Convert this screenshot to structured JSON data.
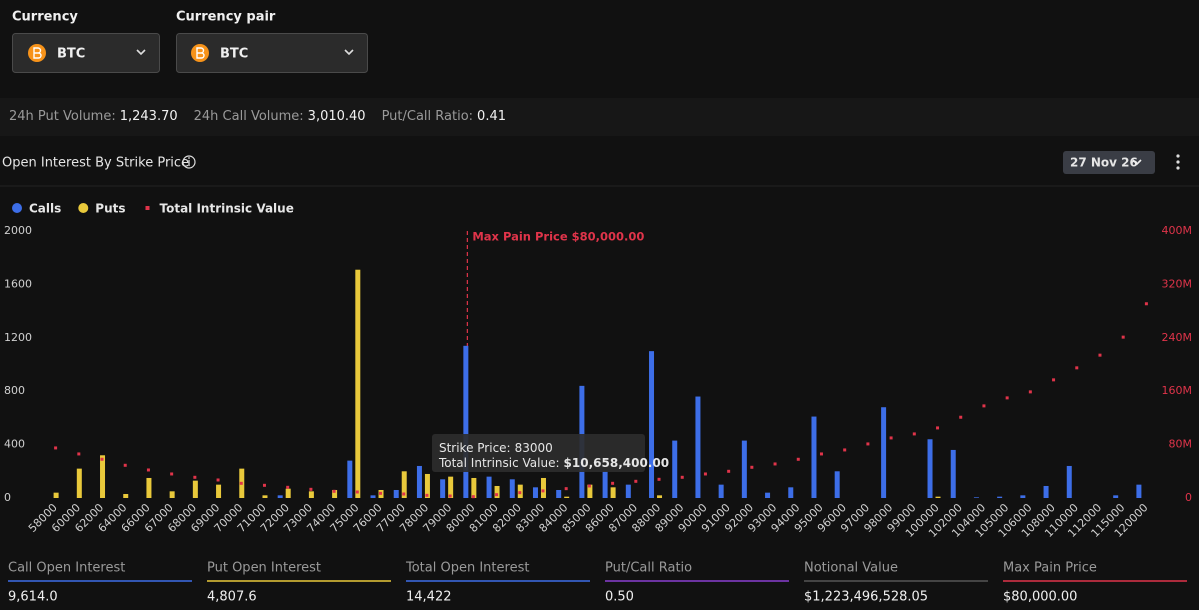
{
  "filters": [
    {
      "label": "Currency",
      "value": "BTC"
    },
    {
      "label": "Currency pair",
      "value": "BTC"
    }
  ],
  "stats": [
    {
      "label": "24h Put Volume:",
      "value": "1,243.70"
    },
    {
      "label": "24h Call Volume:",
      "value": "3,010.40"
    },
    {
      "label": "Put/Call Ratio:",
      "value": "0.41"
    }
  ],
  "chart_data": {
    "type": "bar",
    "title": "Open Interest By Strike Price",
    "date": "27 Nov 26",
    "categories": [
      "58000",
      "60000",
      "62000",
      "64000",
      "66000",
      "67000",
      "68000",
      "69000",
      "70000",
      "71000",
      "72000",
      "73000",
      "74000",
      "75000",
      "76000",
      "77000",
      "78000",
      "79000",
      "80000",
      "81000",
      "82000",
      "83000",
      "84000",
      "85000",
      "86000",
      "87000",
      "88000",
      "89000",
      "90000",
      "91000",
      "92000",
      "93000",
      "94000",
      "95000",
      "96000",
      "97000",
      "98000",
      "99000",
      "100000",
      "102000",
      "104000",
      "105000",
      "106000",
      "108000",
      "110000",
      "112000",
      "115000",
      "120000"
    ],
    "series": [
      {
        "name": "Calls",
        "color": "#3d6ee8",
        "values": [
          0,
          0,
          0,
          0,
          0,
          0,
          0,
          0,
          0,
          0,
          20,
          0,
          0,
          280,
          20,
          60,
          240,
          140,
          1140,
          160,
          140,
          80,
          60,
          840,
          200,
          100,
          1100,
          430,
          760,
          100,
          430,
          40,
          80,
          610,
          200,
          0,
          680,
          0,
          440,
          360,
          5,
          10,
          20,
          90,
          240,
          0,
          20,
          100
        ]
      },
      {
        "name": "Puts",
        "color": "#e9c93b",
        "values": [
          40,
          220,
          320,
          30,
          150,
          50,
          130,
          100,
          220,
          20,
          70,
          50,
          60,
          1710,
          60,
          200,
          180,
          160,
          150,
          90,
          100,
          150,
          10,
          100,
          80,
          0,
          20,
          0,
          0,
          0,
          0,
          0,
          0,
          0,
          0,
          0,
          0,
          0,
          10,
          0,
          0,
          0,
          0,
          0,
          0,
          0,
          0,
          0
        ]
      },
      {
        "name": "Total Intrinsic Value",
        "color": "#e0344a",
        "axis": "y2",
        "values": [
          75,
          66,
          58,
          49,
          42,
          36,
          31,
          27,
          22,
          19,
          16,
          13,
          10,
          9,
          7,
          6,
          4,
          3,
          2,
          5,
          8,
          10.6584,
          14,
          18,
          22,
          25,
          28,
          31,
          36,
          40,
          46,
          51,
          58,
          66,
          72,
          81,
          90,
          96,
          105,
          121,
          138,
          150,
          159,
          177,
          195,
          214,
          241,
          291
        ]
      }
    ],
    "ylim": [
      0,
      2000
    ],
    "yticks": [
      0,
      400,
      800,
      1200,
      1600,
      2000
    ],
    "y2lim": [
      0,
      400
    ],
    "y2ticks": [
      0,
      {
        "value": 80,
        "label": "80M"
      },
      {
        "value": 160,
        "label": "160M"
      },
      {
        "value": 240,
        "label": "240M"
      },
      {
        "value": 320,
        "label": "320M"
      },
      {
        "value": 400,
        "label": "400M"
      }
    ],
    "grid": false,
    "legend": "top-left",
    "annotation": {
      "text": "Max Pain Price $80,000.00",
      "x": "80000"
    },
    "tooltip": {
      "strike_label": "Strike Price:",
      "strike": "83000",
      "value_label": "Total Intrinsic Value:",
      "value": "$10,658,400.00"
    }
  },
  "summary": [
    {
      "label": "Call Open Interest",
      "value": "9,614.0",
      "color": "#3d6ee8"
    },
    {
      "label": "Put Open Interest",
      "value": "4,807.6",
      "color": "#e9c93b"
    },
    {
      "label": "Total Open Interest",
      "value": "14,422",
      "color": "#3d6ee8"
    },
    {
      "label": "Put/Call Ratio",
      "value": "0.50",
      "color": "#8a3fd1"
    },
    {
      "label": "Notional Value",
      "value": "$1,223,496,528.05",
      "color": "#555555"
    },
    {
      "label": "Max Pain Price",
      "value": "$80,000.00",
      "color": "#e0344a"
    }
  ]
}
